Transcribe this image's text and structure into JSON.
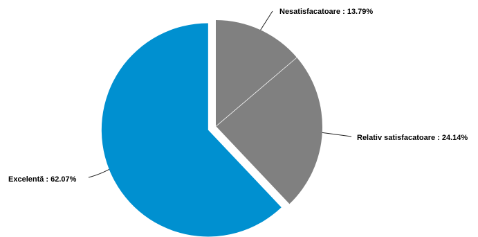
{
  "chart_data": {
    "type": "pie",
    "title": "",
    "slices": [
      {
        "label": "Nesatisfacatoare : 13.79%",
        "value": 13.79,
        "color": "#808080",
        "exploded": false
      },
      {
        "label": "Relativ satisfacatoare : 24.14%",
        "value": 24.14,
        "color": "#808080",
        "exploded": false
      },
      {
        "label": "Excelentă : 62.07%",
        "value": 62.07,
        "color": "#0090d0",
        "exploded": true
      }
    ],
    "start_angle": "12 o'clock",
    "direction": "clockwise",
    "legend": "none"
  }
}
